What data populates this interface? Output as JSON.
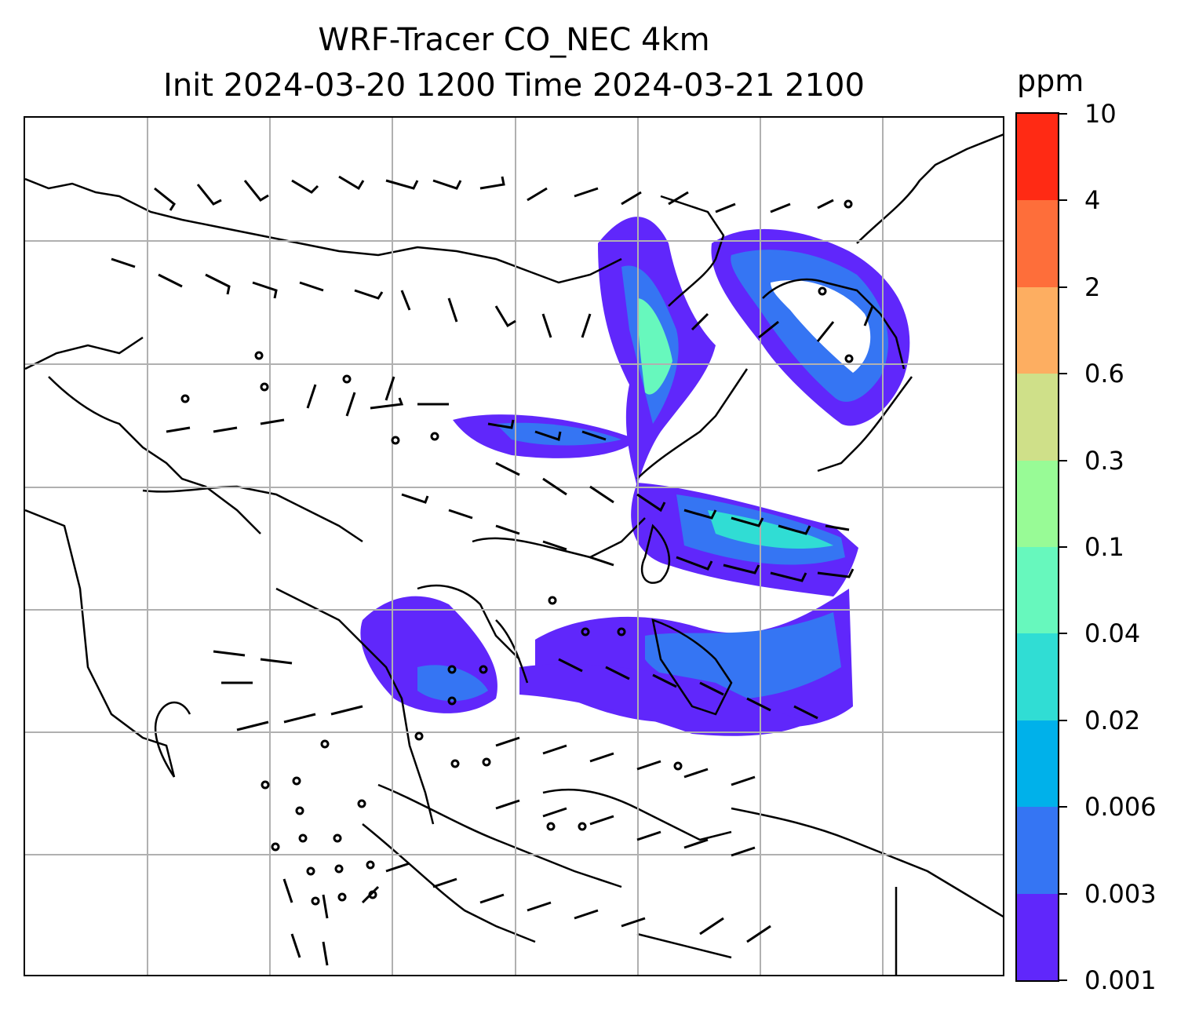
{
  "title": {
    "line1": "WRF-Tracer CO_NEC 4km",
    "line2": "Init 2024-03-20 1200 Time 2024-03-21 2100"
  },
  "colorbar": {
    "label": "ppm",
    "levels": [
      "0.001",
      "0.003",
      "0.006",
      "0.02",
      "0.04",
      "0.1",
      "0.3",
      "0.6",
      "2",
      "4",
      "10"
    ],
    "colors": [
      "#6027FB",
      "#3575F3",
      "#00B1EA",
      "#30DDD4",
      "#67F8BD",
      "#98FB96",
      "#CFE089",
      "#FDAE61",
      "#FE6E3A",
      "#FF2A14"
    ]
  },
  "map": {
    "gridlines": true,
    "wind_barbs": true,
    "coastlines": true,
    "colors": {
      "land_line": "#000000",
      "grid": "#b0b0b0"
    }
  }
}
